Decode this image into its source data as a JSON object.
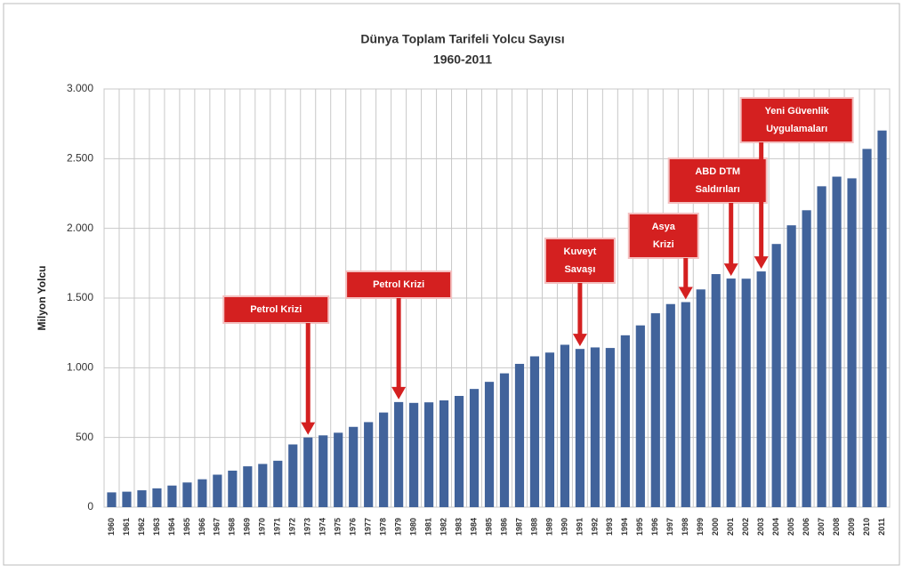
{
  "chart_data": {
    "type": "bar",
    "title": "Dünya Toplam Tarifeli Yolcu Sayısı",
    "subtitle": "1960-2011",
    "y_label": "Milyon Yolcu",
    "categories": [
      "1960",
      "1961",
      "1962",
      "1963",
      "1964",
      "1965",
      "1966",
      "1967",
      "1968",
      "1969",
      "1970",
      "1971",
      "1972",
      "1973",
      "1974",
      "1975",
      "1976",
      "1977",
      "1978",
      "1979",
      "1980",
      "1981",
      "1982",
      "1983",
      "1984",
      "1985",
      "1986",
      "1987",
      "1988",
      "1989",
      "1990",
      "1991",
      "1992",
      "1993",
      "1994",
      "1995",
      "1996",
      "1997",
      "1998",
      "1999",
      "2000",
      "2001",
      "2002",
      "2003",
      "2004",
      "2005",
      "2006",
      "2007",
      "2008",
      "2009",
      "2010",
      "2011"
    ],
    "values": [
      106,
      111,
      121,
      135,
      155,
      177,
      200,
      233,
      262,
      293,
      310,
      333,
      450,
      500,
      515,
      534,
      576,
      610,
      679,
      754,
      748,
      752,
      766,
      798,
      848,
      899,
      960,
      1028,
      1082,
      1109,
      1165,
      1135,
      1146,
      1142,
      1233,
      1304,
      1391,
      1457,
      1471,
      1562,
      1672,
      1640,
      1639,
      1691,
      1888,
      2022,
      2130,
      2302,
      2371,
      2359,
      2570,
      2702
    ],
    "color": "#41639b",
    "ylim": [
      0,
      3000
    ],
    "yticks": [
      0,
      500,
      {
        "value": 1000,
        "label": "1.000"
      },
      {
        "value": 1500,
        "label": "1.500"
      },
      {
        "value": 2000,
        "label": "2.000"
      },
      {
        "value": 2500,
        "label": "2.500"
      },
      {
        "value": 3000,
        "label": "3.000"
      }
    ],
    "grid": true,
    "annotations": [
      {
        "x": "1973",
        "lines": [
          "Petrol Krizi"
        ]
      },
      {
        "x": "1979",
        "lines": [
          "Petrol Krizi"
        ]
      },
      {
        "x": "1991",
        "lines": [
          "Kuveyt",
          "Savaşı"
        ]
      },
      {
        "x": "1998",
        "lines": [
          "Asya",
          "Krizi"
        ]
      },
      {
        "x": "2001",
        "lines": [
          "ABD DTM",
          "Saldırıları"
        ]
      },
      {
        "x": "2003",
        "lines": [
          "Yeni Güvenlik",
          "Uygulamaları"
        ]
      }
    ],
    "annotation_color": "#d42020"
  }
}
